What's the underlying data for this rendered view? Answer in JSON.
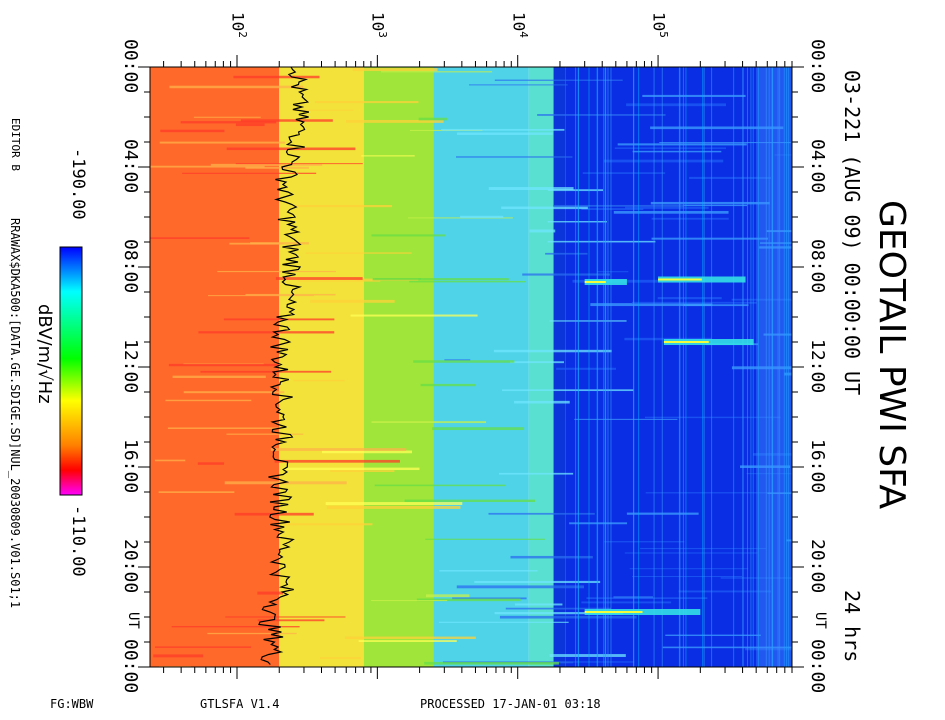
{
  "title": "GEOTAIL PWI SFA",
  "date_line": "03-221 (AUG 09) 00:00:00 UT",
  "duration": "24 hrs",
  "editor": "EDITOR B",
  "file_path": "RRAWAX$DKA500:[DATA.GE.SDIGE.SD]NUL_20030809.V01.S01;1",
  "colorbar": {
    "label": "dBV/m/√Hz",
    "min_label": "-190.00",
    "max_label": "-110.00",
    "min": -190,
    "max": -110
  },
  "footer": {
    "left": "FG:WBW",
    "center": "GTLSFA   V1.4",
    "right": "PROCESSED 17-JAN-01  03:18"
  },
  "chart_data": {
    "type": "heatmap",
    "x_axis": {
      "scale": "log",
      "tick_labels": [
        "10^2",
        "10^3",
        "10^4",
        "10^5"
      ],
      "tick_values": [
        100,
        1000,
        10000,
        100000
      ],
      "range": [
        24,
        900000
      ],
      "label": ""
    },
    "y_axis": {
      "label": "UT",
      "range_hours": [
        0,
        24
      ],
      "tick_labels": [
        "00:00",
        "04:00",
        "08:00",
        "12:00",
        "16:00",
        "20:00",
        "00:00"
      ],
      "ut_marker": "UT"
    },
    "colormap": [
      "#ff00ff",
      "#ff0000",
      "#ffa500",
      "#ffff00",
      "#00ff00",
      "#00ffff",
      "#0000ff"
    ],
    "bands": [
      {
        "name": "low_freq",
        "f_range": [
          24,
          200
        ],
        "color": "#ff6a2a"
      },
      {
        "name": "yellow",
        "f_range": [
          200,
          800
        ],
        "color": "#f2e23a"
      },
      {
        "name": "green",
        "f_range": [
          800,
          2500
        ],
        "color": "#9fe53a"
      },
      {
        "name": "cyan",
        "f_range": [
          2500,
          12000
        ],
        "color": "#4fd3e8"
      },
      {
        "name": "cyan_hot",
        "f_range": [
          12000,
          18000
        ],
        "color": "#5ae0d0"
      },
      {
        "name": "blue_lane",
        "f_range": [
          18000,
          22000
        ],
        "color": "#0b35d8"
      },
      {
        "name": "blue",
        "f_range": [
          22000,
          900000
        ],
        "color": "#0a2ee3"
      }
    ],
    "events": [
      {
        "t_hours": 8.5,
        "f_start": 100000,
        "f_end": 420000,
        "note": "emission burst"
      },
      {
        "t_hours": 11.0,
        "f_start": 110000,
        "f_end": 480000,
        "note": "emission burst"
      },
      {
        "t_hours": 21.8,
        "f_start": 30000,
        "f_end": 200000,
        "note": "intense emission"
      },
      {
        "t_hours": 8.6,
        "f_start": 30000,
        "f_end": 60000,
        "note": "narrowband tone"
      }
    ],
    "trace": {
      "description": "black line ~ lower-frequency boundary",
      "f_mean": 230,
      "points_hours": [
        0,
        1,
        2,
        3,
        4,
        5,
        6,
        7,
        8,
        9,
        10,
        11,
        12,
        13,
        14,
        15,
        16,
        17,
        18,
        19,
        20,
        21,
        22,
        23,
        24
      ],
      "f_values": [
        280,
        270,
        280,
        275,
        240,
        215,
        235,
        245,
        255,
        235,
        215,
        210,
        200,
        215,
        205,
        215,
        195,
        210,
        205,
        220,
        205,
        220,
        165,
        190,
        170
      ]
    }
  }
}
